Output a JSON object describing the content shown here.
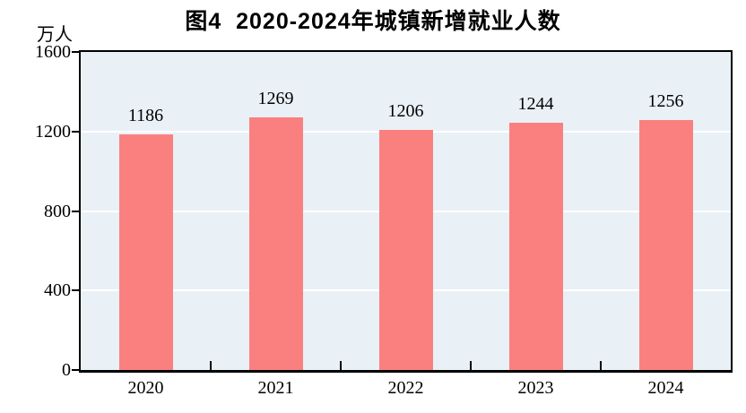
{
  "page": {
    "background": "#ffffff"
  },
  "chart_data": {
    "type": "bar",
    "title": "图4  2020-2024年城镇新增就业人数",
    "unit_label": "万人",
    "categories": [
      "2020",
      "2021",
      "2022",
      "2023",
      "2024"
    ],
    "values": [
      1186,
      1269,
      1206,
      1244,
      1256
    ],
    "series_name": "城镇新增就业人数",
    "ylim": [
      0,
      1600
    ],
    "yticks": [
      0,
      400,
      800,
      1200,
      1600
    ],
    "xlabel": "",
    "ylabel": "万人",
    "legend": "none",
    "grid": "horizontal",
    "data_labels": true,
    "colors": {
      "bar": "#fa8080",
      "plot_background": "#e9f1f6",
      "gridline": "#ffffff",
      "axis": "#000000",
      "text": "#000000"
    }
  }
}
